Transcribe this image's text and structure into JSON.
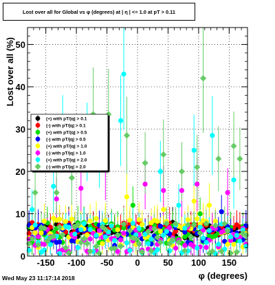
{
  "title": "Lost over all for Global vs φ (degrees) at | η | <= 1.0 at pT > 0.11",
  "timestamp": "Wed May 23 11:17:14 2018",
  "chart_data": {
    "type": "scatter",
    "xlabel": "φ (degrees)",
    "ylabel": "Lost over all (%)",
    "xlim": [
      -180,
      180
    ],
    "ylim": [
      0,
      54
    ],
    "xticks": [
      "-150",
      "-100",
      "-50",
      "0",
      "50",
      "100",
      "150"
    ],
    "yticks": [
      "0",
      "10",
      "20",
      "30",
      "40",
      "50"
    ],
    "grid": true,
    "legend_position": "left-middle",
    "series": [
      {
        "name": "(+) with pT/|q| > 0.1",
        "color": "#000000",
        "marker": "circle",
        "base": 6.0,
        "spread": 2.0,
        "outliers": []
      },
      {
        "name": "(-) with pT/|q| > 0.1",
        "color": "#ff0000",
        "marker": "circle",
        "base": 6.5,
        "spread": 1.5,
        "outliers": []
      },
      {
        "name": "(+) with pT/|q| > 0.5",
        "color": "#00dd00",
        "marker": "circle",
        "base": 5.5,
        "spread": 2.5,
        "outliers": [
          [
            -5,
            12
          ],
          [
            105,
            10
          ]
        ]
      },
      {
        "name": "(-) with pT/|q| > 0.5",
        "color": "#0000ff",
        "marker": "circle",
        "base": 5.0,
        "spread": 2.5,
        "outliers": [
          [
            140,
            10.5
          ]
        ]
      },
      {
        "name": "(+) with pT/|q| > 1.0",
        "color": "#ffff00",
        "marker": "circle",
        "base": 5.5,
        "spread": 3.5,
        "outliers": [
          [
            -15,
            14
          ],
          [
            45,
            11
          ],
          [
            95,
            13
          ],
          [
            120,
            12
          ]
        ]
      },
      {
        "name": "(-) with pT/|q| > 1.0",
        "color": "#ff00ff",
        "marker": "circle",
        "base": 4.0,
        "spread": 3.0,
        "outliers": [
          [
            -50,
            20.5
          ],
          [
            -90,
            16
          ],
          [
            -130,
            13.5
          ],
          [
            15,
            17
          ],
          [
            45,
            15.5
          ],
          [
            75,
            15.5
          ],
          [
            100,
            17
          ],
          [
            150,
            15
          ]
        ]
      },
      {
        "name": "(+) with pT/|q| > 2.0",
        "color": "#00ffff",
        "marker": "circle",
        "base": 4.0,
        "spread": 4.0,
        "outliers": [
          [
            -20,
            43
          ],
          [
            -80,
            27
          ],
          [
            -105,
            24
          ],
          [
            -135,
            16.5
          ],
          [
            -170,
            11
          ],
          [
            -60,
            24
          ],
          [
            -120,
            29
          ],
          [
            40,
            20
          ],
          [
            70,
            12
          ],
          [
            95,
            25
          ],
          [
            125,
            28.5
          ],
          [
            160,
            18
          ],
          [
            -25,
            32
          ]
        ]
      },
      {
        "name": "(-) with pT/|q| > 2.0",
        "color": "#66cc66",
        "marker": "diamond",
        "base": 4.0,
        "spread": 4.0,
        "outliers": [
          [
            -165,
            15
          ],
          [
            -105,
            18.5
          ],
          [
            -70,
            33.5
          ],
          [
            -45,
            33.5
          ],
          [
            -15,
            28.5
          ],
          [
            15,
            35
          ],
          [
            15,
            22
          ],
          [
            45,
            24
          ],
          [
            75,
            20
          ],
          [
            110,
            42
          ],
          [
            135,
            23
          ],
          [
            160,
            26
          ],
          [
            170,
            23
          ],
          [
            100,
            21
          ],
          [
            -130,
            15
          ]
        ]
      }
    ]
  }
}
